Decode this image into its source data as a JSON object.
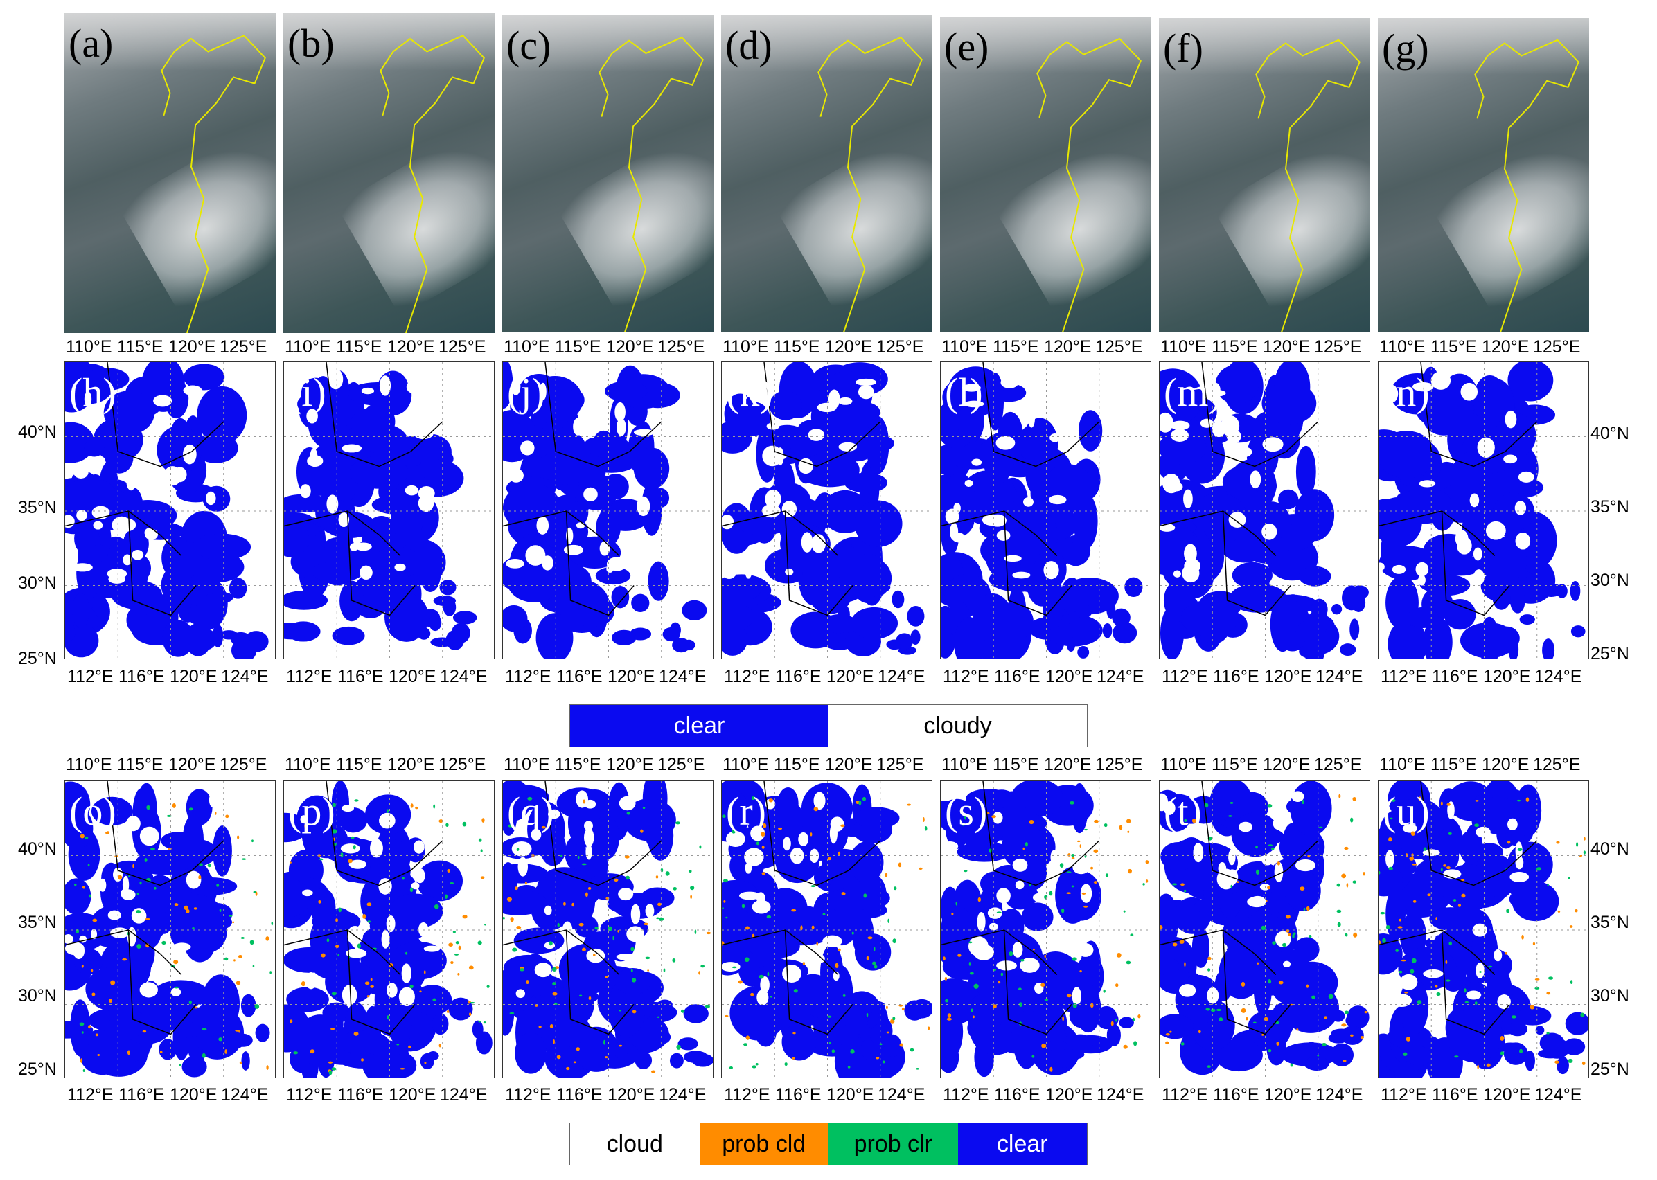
{
  "figure": {
    "row1_labels": [
      "(a)",
      "(b)",
      "(c)",
      "(d)",
      "(e)",
      "(f)",
      "(g)"
    ],
    "row2_labels": [
      "(h)",
      "(i)",
      "(j)",
      "(k)",
      "(l)",
      "(m)",
      "(n)"
    ],
    "row3_labels": [
      "(o)",
      "(p)",
      "(q)",
      "(r)",
      "(s)",
      "(t)",
      "(u)"
    ],
    "lon_ticks_sat": [
      "110°E",
      "115°E",
      "120°E",
      "125°E"
    ],
    "lon_ticks_map": [
      "112°E",
      "116°E",
      "120°E",
      "124°E"
    ],
    "lat_ticks": [
      "40°N",
      "35°N",
      "30°N",
      "25°N"
    ]
  },
  "legend_binary": {
    "items": [
      {
        "label": "clear",
        "color": "#0a0af0",
        "text_color": "#ffffff"
      },
      {
        "label": "cloudy",
        "color": "#ffffff",
        "text_color": "#000000"
      }
    ]
  },
  "legend_four": {
    "items": [
      {
        "label": "cloud",
        "color": "#ffffff",
        "text_color": "#000000"
      },
      {
        "label": "prob cld",
        "color": "#ff8c00",
        "text_color": "#000000"
      },
      {
        "label": "prob clr",
        "color": "#00c060",
        "text_color": "#000000"
      },
      {
        "label": "clear",
        "color": "#0a0af0",
        "text_color": "#ffffff"
      }
    ]
  }
}
